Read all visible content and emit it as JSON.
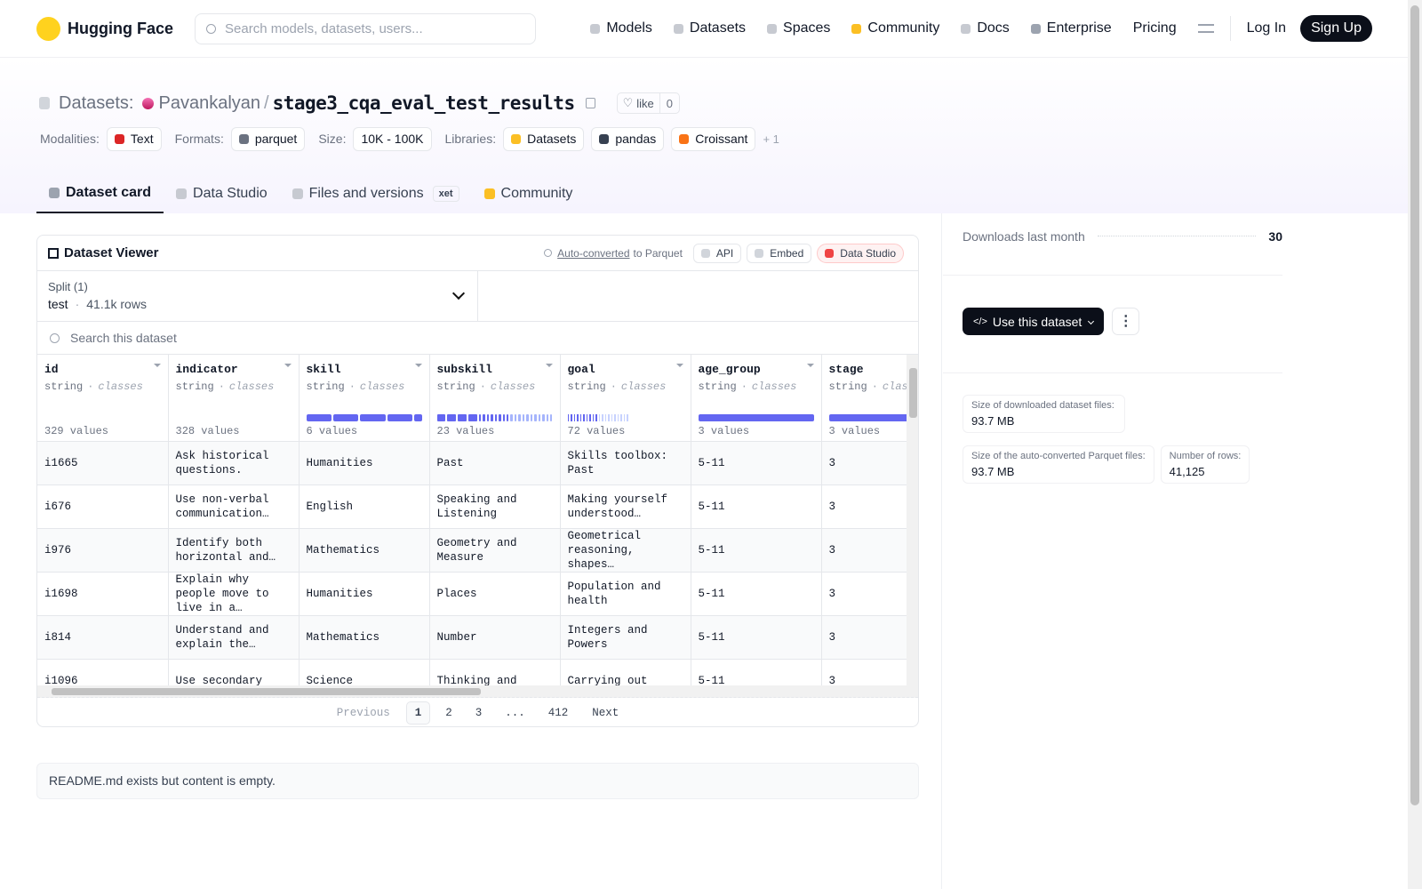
{
  "nav": {
    "brand": "Hugging Face",
    "search_placeholder": "Search models, datasets, users...",
    "links": [
      "Models",
      "Datasets",
      "Spaces",
      "Community",
      "Docs",
      "Enterprise",
      "Pricing"
    ],
    "login": "Log In",
    "signup": "Sign Up"
  },
  "header": {
    "kind": "Datasets:",
    "owner": "Pavankalyan",
    "separator": "/",
    "name": "stage3_cqa_eval_test_results",
    "like": "like",
    "likes": 0
  },
  "tags": {
    "groups": [
      {
        "label": "Modalities:",
        "items": [
          "Text"
        ]
      },
      {
        "label": "Formats:",
        "items": [
          "parquet"
        ]
      },
      {
        "label": "Size:",
        "items": [
          "10K - 100K"
        ]
      },
      {
        "label": "Libraries:",
        "items": [
          "Datasets",
          "pandas",
          "Croissant"
        ]
      }
    ],
    "more": "+ 1"
  },
  "tabs": {
    "items": [
      "Dataset card",
      "Data Studio",
      "Files and versions",
      "Community"
    ],
    "xet": "xet"
  },
  "viewer": {
    "title": "Dataset Viewer",
    "auto_converted": "Auto-converted",
    "to_parquet": "to Parquet",
    "buttons": [
      "API",
      "Embed",
      "Data Studio"
    ],
    "split_label": "Split (1)",
    "split_name": "test",
    "split_separator": "·",
    "split_rows": "41.1k rows",
    "search_placeholder": "Search this dataset",
    "type_separator": "·",
    "columns": [
      {
        "name": "id",
        "type": "string",
        "kind": "classes",
        "count": "329 values"
      },
      {
        "name": "indicator",
        "type": "string",
        "kind": "classes",
        "count": "328 values"
      },
      {
        "name": "skill",
        "type": "string",
        "kind": "classes",
        "count": "6 values"
      },
      {
        "name": "subskill",
        "type": "string",
        "kind": "classes",
        "count": "23 values"
      },
      {
        "name": "goal",
        "type": "string",
        "kind": "classes",
        "count": "72 values"
      },
      {
        "name": "age_group",
        "type": "string",
        "kind": "classes",
        "count": "3 values"
      },
      {
        "name": "stage",
        "type": "string",
        "kind": "classes",
        "count": "3 values"
      }
    ],
    "rows": [
      [
        "i1665",
        "Ask historical questions.",
        "Humanities",
        "Past",
        "Skills toolbox: Past",
        "5-11",
        "3"
      ],
      [
        "i676",
        "Use non-verbal communication…",
        "English",
        "Speaking and Listening",
        "Making yourself understood…",
        "5-11",
        "3"
      ],
      [
        "i976",
        "Identify both horizontal and…",
        "Mathematics",
        "Geometry and Measure",
        "Geometrical reasoning, shapes…",
        "5-11",
        "3"
      ],
      [
        "i1698",
        "Explain why people move to live in a…",
        "Humanities",
        "Places",
        "Population and health",
        "5-11",
        "3"
      ],
      [
        "i814",
        "Understand and explain the…",
        "Mathematics",
        "Number",
        "Integers and Powers",
        "5-11",
        "3"
      ],
      [
        "i1096",
        "Use secondary",
        "Science",
        "Thinking and",
        "Carrying out",
        "5-11",
        "3"
      ]
    ],
    "pagination": {
      "previous": "Previous",
      "pages": [
        "1",
        "2",
        "3",
        "...",
        "412"
      ],
      "next": "Next"
    }
  },
  "readme": "README.md exists but content is empty.",
  "sidebar": {
    "downloads_label": "Downloads last month",
    "downloads": 30,
    "use_button": "Use this dataset",
    "stats": [
      {
        "label": "Size of downloaded dataset files:",
        "value": "93.7 MB"
      },
      {
        "label": "Size of the auto-converted Parquet files:",
        "value": "93.7 MB"
      },
      {
        "label": "Number of rows:",
        "value": "41,125"
      }
    ]
  }
}
